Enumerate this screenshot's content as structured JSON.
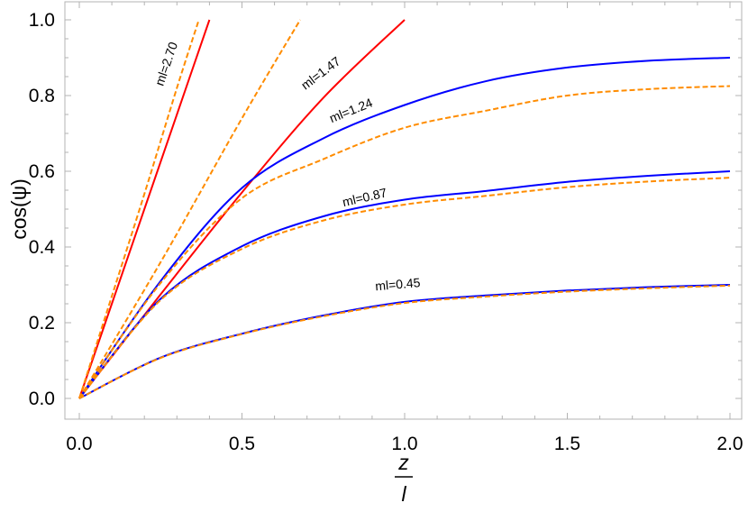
{
  "chart_data": {
    "type": "line",
    "xlabel_numerator": "z",
    "xlabel_denominator": "l",
    "ylabel": "cos(ψ)",
    "xlim": [
      0,
      2
    ],
    "ylim": [
      0,
      1
    ],
    "grid": false,
    "x_ticks": [
      "0.0",
      "0.5",
      "1.0",
      "1.5",
      "2.0"
    ],
    "y_ticks": [
      "0.0",
      "0.2",
      "0.4",
      "0.6",
      "0.8",
      "1.0"
    ],
    "colors": {
      "solid_blue": "#0000ff",
      "solid_red": "#ff0000",
      "dashed": "#ff8c00"
    },
    "annotations": [
      {
        "text": "ml=2.70",
        "at": [
          0.28,
          0.88
        ]
      },
      {
        "text": "ml=1.47",
        "at": [
          0.75,
          0.85
        ]
      },
      {
        "text": "ml=1.24",
        "at": [
          0.84,
          0.75
        ]
      },
      {
        "text": "ml=0.87",
        "at": [
          0.88,
          0.52
        ]
      },
      {
        "text": "ml=0.45",
        "at": [
          0.98,
          0.29
        ]
      }
    ],
    "series": [
      {
        "style": "solid",
        "color": "#ff0000",
        "x": [
          0,
          0.1,
          0.2,
          0.3,
          0.4
        ],
        "y": [
          0,
          0.25,
          0.5,
          0.75,
          1.0
        ]
      },
      {
        "style": "dashed",
        "color": "#ff8c00",
        "x": [
          0,
          0.1,
          0.2,
          0.3,
          0.3675
        ],
        "y": [
          0,
          0.27,
          0.54,
          0.82,
          1.0
        ]
      },
      {
        "style": "solid",
        "color": "#ff0000",
        "x": [
          0,
          0.25,
          0.5,
          0.75,
          1.0
        ],
        "y": [
          0,
          0.275,
          0.544,
          0.794,
          1.0
        ]
      },
      {
        "style": "dashed",
        "color": "#ff8c00",
        "x": [
          0,
          0.25,
          0.5,
          0.679
        ],
        "y": [
          0,
          0.36,
          0.74,
          1.0
        ]
      },
      {
        "style": "solid",
        "color": "#0000ff",
        "x": [
          0,
          0.25,
          0.5,
          0.75,
          1.0,
          1.25,
          1.5,
          1.75,
          2.0
        ],
        "y": [
          0,
          0.31,
          0.556,
          0.687,
          0.775,
          0.838,
          0.874,
          0.892,
          0.9
        ]
      },
      {
        "style": "dashed",
        "color": "#ff8c00",
        "x": [
          0,
          0.25,
          0.5,
          0.75,
          1.0,
          1.25,
          1.5,
          1.75,
          2.0
        ],
        "y": [
          0,
          0.305,
          0.529,
          0.632,
          0.715,
          0.76,
          0.8,
          0.817,
          0.825
        ]
      },
      {
        "style": "solid",
        "color": "#0000ff",
        "x": [
          0,
          0.25,
          0.5,
          0.75,
          1.0,
          1.25,
          1.5,
          1.75,
          2.0
        ],
        "y": [
          0,
          0.263,
          0.402,
          0.481,
          0.525,
          0.548,
          0.572,
          0.588,
          0.6
        ]
      },
      {
        "style": "dashed",
        "color": "#ff8c00",
        "x": [
          0,
          0.25,
          0.5,
          0.75,
          1.0,
          1.25,
          1.5,
          1.75,
          2.0
        ],
        "y": [
          0,
          0.26,
          0.395,
          0.47,
          0.512,
          0.535,
          0.558,
          0.573,
          0.583
        ]
      },
      {
        "style": "solid",
        "color": "#0000ff",
        "x": [
          0,
          0.25,
          0.5,
          0.75,
          1.0,
          1.25,
          1.5,
          1.75,
          2.0
        ],
        "y": [
          0,
          0.108,
          0.171,
          0.219,
          0.255,
          0.272,
          0.285,
          0.294,
          0.3
        ]
      },
      {
        "style": "dashed",
        "color": "#ff8c00",
        "x": [
          0,
          0.25,
          0.5,
          0.75,
          1.0,
          1.25,
          1.5,
          1.75,
          2.0
        ],
        "y": [
          0,
          0.107,
          0.17,
          0.217,
          0.252,
          0.269,
          0.282,
          0.291,
          0.298
        ]
      }
    ]
  }
}
